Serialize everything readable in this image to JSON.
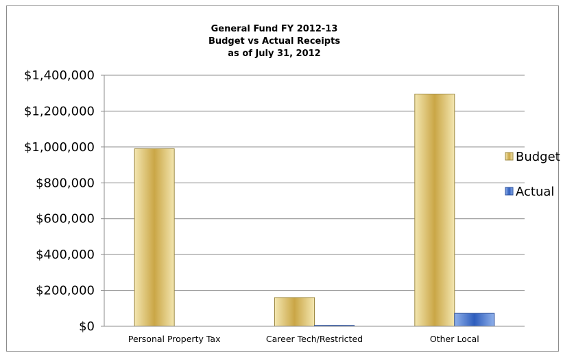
{
  "chart_data": {
    "type": "bar",
    "title_lines": [
      "General Fund FY 2012-13",
      "Budget vs Actual Receipts",
      "as of July 31, 2012"
    ],
    "categories": [
      "Personal Property Tax",
      "Career Tech/Restricted",
      "Other Local"
    ],
    "series": [
      {
        "name": "Budget",
        "values": [
          990000,
          160000,
          1295000
        ],
        "color": "#d4b85c"
      },
      {
        "name": "Actual",
        "values": [
          0,
          5000,
          72000
        ],
        "color": "#4472c4"
      }
    ],
    "ylim": [
      0,
      1400000
    ],
    "y_ticks": [
      {
        "value": 0,
        "label": "$0"
      },
      {
        "value": 200000,
        "label": "$200,000"
      },
      {
        "value": 400000,
        "label": "$400,000"
      },
      {
        "value": 600000,
        "label": "$600,000"
      },
      {
        "value": 800000,
        "label": "$800,000"
      },
      {
        "value": 1000000,
        "label": "$1,000,000"
      },
      {
        "value": 1200000,
        "label": "$1,200,000"
      },
      {
        "value": 1400000,
        "label": "$1,400,000"
      }
    ],
    "grid": true,
    "legend_position": "right"
  }
}
